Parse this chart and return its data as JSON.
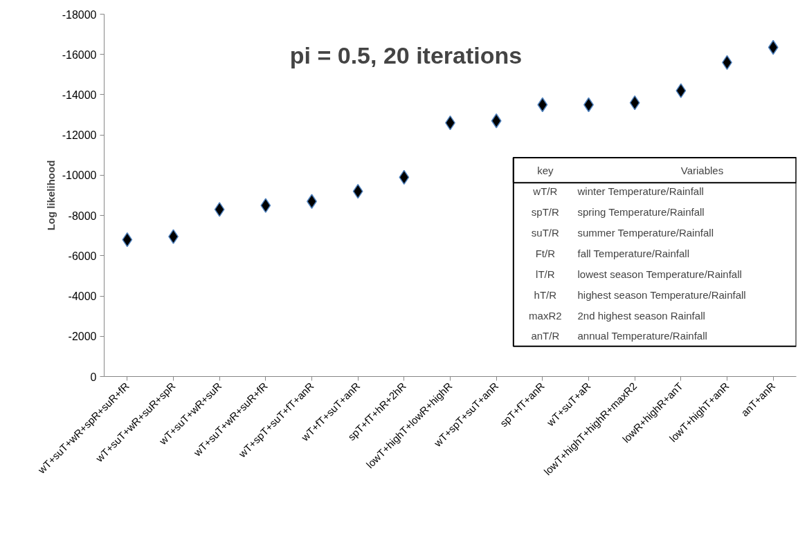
{
  "chart_data": {
    "type": "scatter",
    "title": "pi = 0.5, 20 iterations",
    "ylabel": "Log likelihood",
    "categories": [
      "wT+suT+wR+spR+suR+fR",
      "wT+suT+wR+suR+spR",
      "wT+suT+wR+suR",
      "wT+suT+wR+suR+fR",
      "wT+spT+suT+fT+anR",
      "wT+fT+suT+anR",
      "spT+fT+hR+2hR",
      "lowT+highT+lowR+highR",
      "wT+spT+suT+anR",
      "spT+fT+anR",
      "wT+suT+aR",
      "lowT+highT+highR+maxR2",
      "lowR+highR+anT",
      "lowT+highT+anR",
      "anT+anR"
    ],
    "series": [
      {
        "color": "#000000",
        "values": [
          -6800,
          -6950,
          -8300,
          -8500,
          -8700,
          -9200,
          -9900,
          -12600,
          -12700,
          -13500,
          -13500,
          -13600,
          -14200,
          -15600,
          -16350
        ]
      }
    ],
    "ylim": [
      0,
      -18000
    ],
    "yticks": [
      0,
      -2000,
      -4000,
      -6000,
      -8000,
      -10000,
      -12000,
      -14000,
      -16000,
      -18000
    ],
    "marker": "diamond",
    "grid": false,
    "annotations": [
      "key",
      "Variables",
      "wT/R",
      "winter Temperature/Rainfall",
      "spT/R",
      "spring Temperature/Rainfall",
      "suT/R",
      "summer Temperature/Rainfall",
      "Ft/R",
      "fall Temperature/Rainfall",
      "lT/R",
      "lowest season Temperature/Rainfall",
      "hT/R",
      "highest season Temperature/Rainfall",
      "maxR2",
      "2nd highest season Rainfall",
      "anT/R",
      "annual Temperature/Rainfall"
    ]
  }
}
